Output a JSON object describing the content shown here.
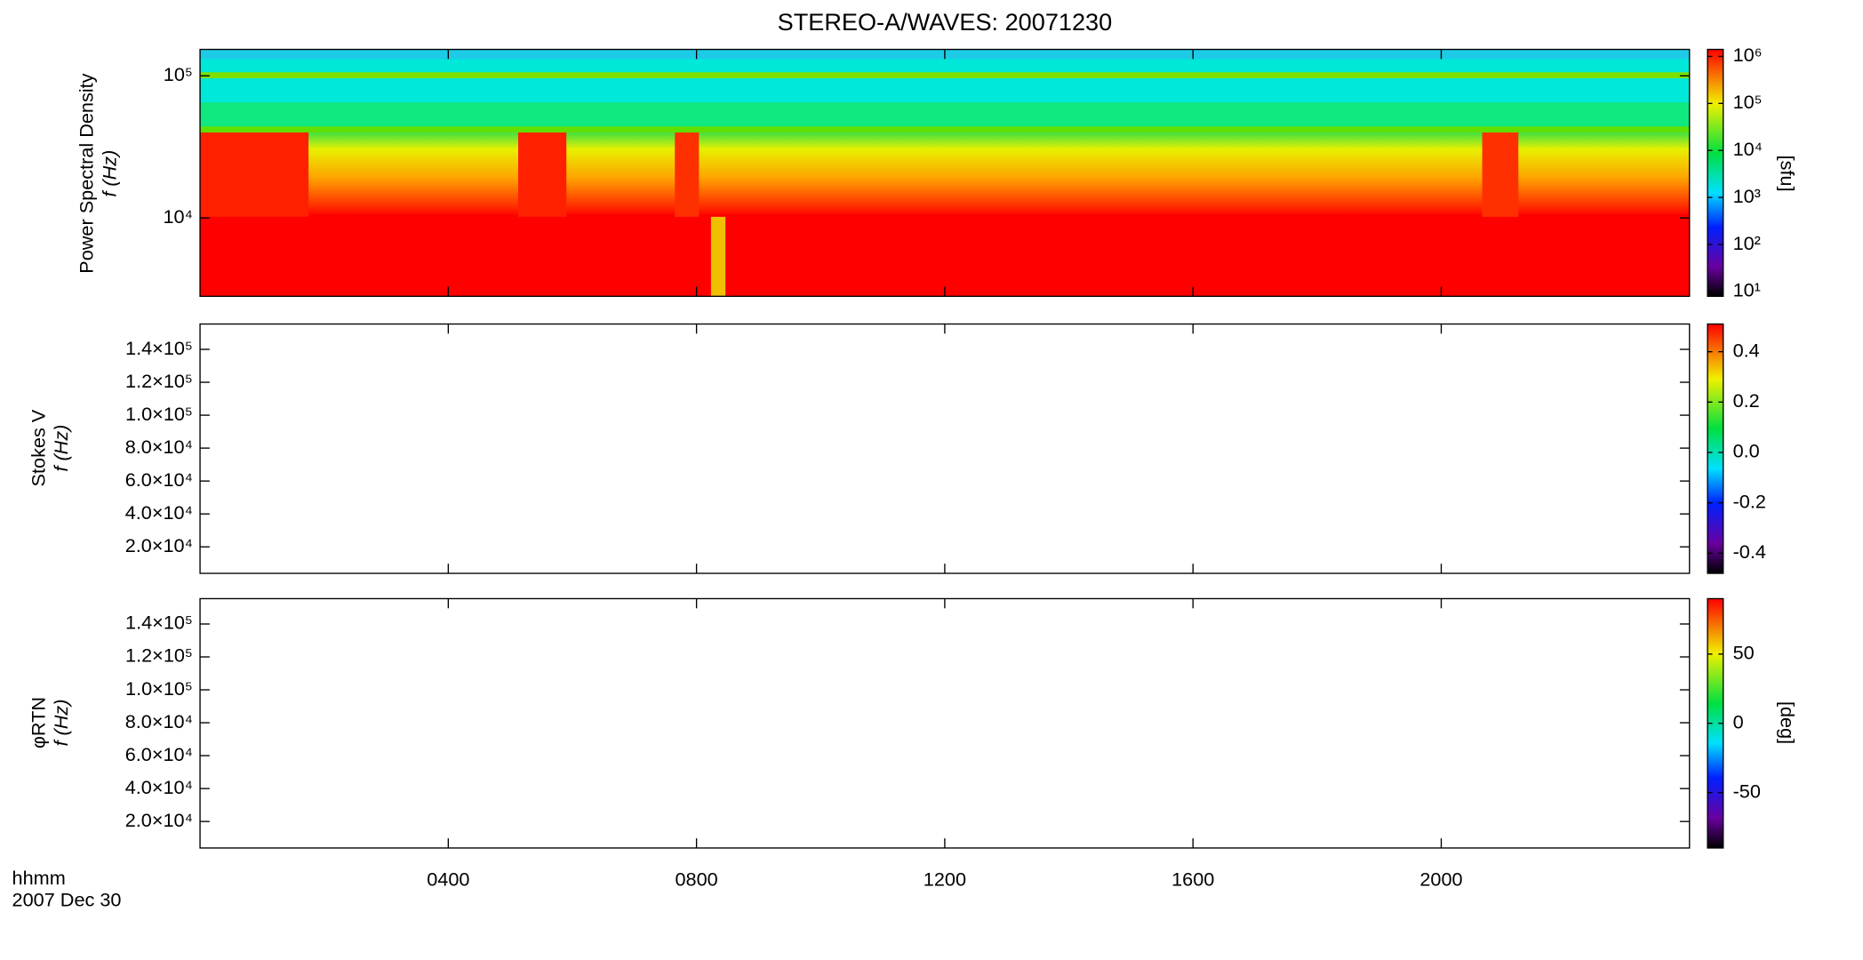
{
  "chart_data": [
    {
      "type": "spectrogram",
      "title": "STEREO-A/WAVES: 20071230",
      "y_label": [
        "Power Spectral Density",
        "f (Hz)"
      ],
      "log_y": true,
      "ylim": [
        2810,
        153500
      ],
      "yticks": [
        {
          "value": 10000,
          "label": "10⁴"
        },
        {
          "value": 100000,
          "label": "10⁵"
        }
      ],
      "colorbar": {
        "log": true,
        "lim": [
          7.9,
          1410000
        ],
        "label": "[sfu]",
        "ticks": [
          {
            "value": 10,
            "label": "10¹"
          },
          {
            "value": 100,
            "label": "10²"
          },
          {
            "value": 1000,
            "label": "10³"
          },
          {
            "value": 10000,
            "label": "10⁴"
          },
          {
            "value": 100000,
            "label": "10⁵"
          },
          {
            "value": 1000000,
            "label": "10⁶"
          }
        ]
      }
    },
    {
      "type": "spectrogram",
      "y_label": [
        "Stokes V",
        "f (Hz)"
      ],
      "log_y": false,
      "ylim": [
        3900,
        155400
      ],
      "yticks": [
        {
          "value": 20000,
          "label": "2.0×10⁴"
        },
        {
          "value": 40000,
          "label": "4.0×10⁴"
        },
        {
          "value": 60000,
          "label": "6.0×10⁴"
        },
        {
          "value": 80000,
          "label": "8.0×10⁴"
        },
        {
          "value": 100000,
          "label": "1.0×10⁵"
        },
        {
          "value": 120000,
          "label": "1.2×10⁵"
        },
        {
          "value": 140000,
          "label": "1.4×10⁵"
        }
      ],
      "colorbar": {
        "log": false,
        "lim": [
          -0.48,
          0.51
        ],
        "ticks": [
          -0.4,
          -0.2,
          {
            "value": 0,
            "label": "0.0"
          },
          0.2,
          0.4
        ]
      }
    },
    {
      "type": "spectrogram",
      "y_label": [
        "φRTN",
        "f (Hz)"
      ],
      "log_y": false,
      "ylim": [
        3900,
        155400
      ],
      "yticks": [
        {
          "value": 20000,
          "label": "2.0×10⁴"
        },
        {
          "value": 40000,
          "label": "4.0×10⁴"
        },
        {
          "value": 60000,
          "label": "6.0×10⁴"
        },
        {
          "value": 80000,
          "label": "8.0×10⁴"
        },
        {
          "value": 100000,
          "label": "1.0×10⁵"
        },
        {
          "value": 120000,
          "label": "1.2×10⁵"
        },
        {
          "value": 140000,
          "label": "1.4×10⁵"
        }
      ],
      "colorbar": {
        "log": false,
        "lim": [
          -90,
          90
        ],
        "label": "[deg]",
        "ticks": [
          -50,
          0,
          50
        ]
      },
      "x_label": [
        "hhmm",
        "2007 Dec 30"
      ],
      "xlim": [
        0,
        24
      ],
      "xticks": [
        {
          "value": 4,
          "label": "0400"
        },
        {
          "value": 8,
          "label": "0800"
        },
        {
          "value": 12,
          "label": "1200"
        },
        {
          "value": 16,
          "label": "1600"
        },
        {
          "value": 20,
          "label": "2000"
        }
      ]
    }
  ]
}
